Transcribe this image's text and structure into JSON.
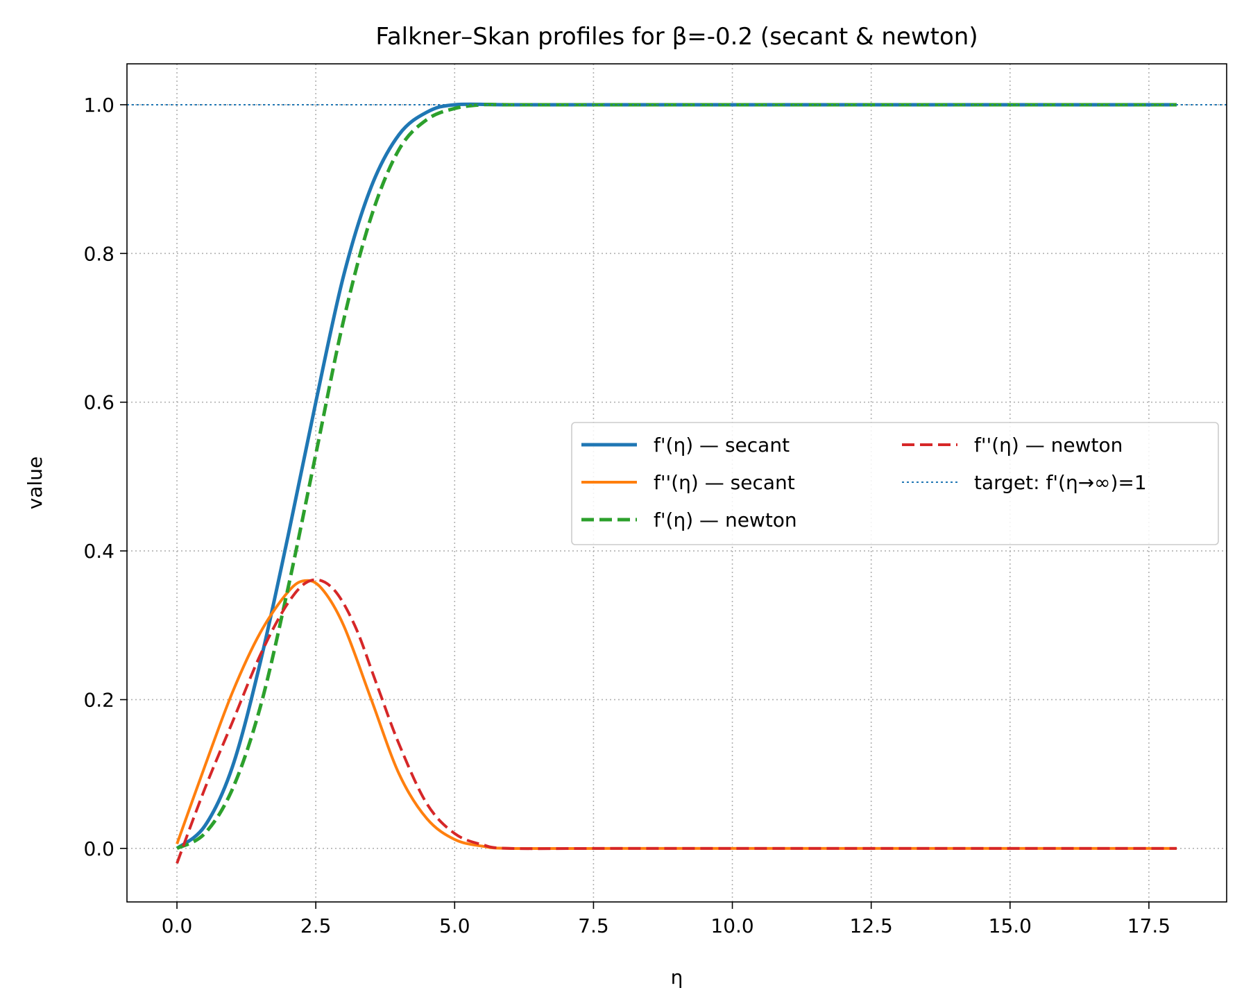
{
  "chart_data": {
    "type": "line",
    "title": "Falkner–Skan profiles for β=-0.2 (secant & newton)",
    "xlabel": "η",
    "ylabel": "value",
    "xlim": [
      -0.9,
      18.9
    ],
    "ylim": [
      -0.072,
      1.055
    ],
    "x_ticks": [
      0.0,
      2.5,
      5.0,
      7.5,
      10.0,
      12.5,
      15.0,
      17.5
    ],
    "x_tick_labels": [
      "0.0",
      "2.5",
      "5.0",
      "7.5",
      "10.0",
      "12.5",
      "15.0",
      "17.5"
    ],
    "y_ticks": [
      0.0,
      0.2,
      0.4,
      0.6,
      0.8,
      1.0
    ],
    "y_tick_labels": [
      "0.0",
      "0.2",
      "0.4",
      "0.6",
      "0.8",
      "1.0"
    ],
    "grid": true,
    "legend_position": "center-right",
    "series": [
      {
        "name": "f'(η) — secant",
        "color": "#1f77b4",
        "style": "solid",
        "x": [
          0.0,
          0.5,
          1.0,
          1.5,
          2.0,
          2.5,
          3.0,
          3.5,
          4.0,
          4.5,
          5.0,
          6.0,
          8.0,
          12.0,
          18.0
        ],
        "y": [
          0.0,
          0.03,
          0.11,
          0.25,
          0.42,
          0.6,
          0.77,
          0.89,
          0.96,
          0.99,
          1.0,
          1.0,
          1.0,
          1.0,
          1.0
        ]
      },
      {
        "name": "f''(η) — secant",
        "color": "#ff7f0e",
        "style": "solid",
        "x": [
          0.0,
          0.5,
          1.0,
          1.5,
          2.0,
          2.3,
          2.6,
          3.0,
          3.5,
          4.0,
          4.5,
          5.0,
          5.5,
          6.0,
          8.0,
          12.0,
          18.0
        ],
        "y": [
          0.006,
          0.11,
          0.21,
          0.29,
          0.345,
          0.36,
          0.35,
          0.3,
          0.2,
          0.1,
          0.04,
          0.012,
          0.003,
          0.0,
          0.0,
          0.0,
          0.0
        ],
        "markers": "none"
      },
      {
        "name": "f'(η) — newton",
        "color": "#2ca02c",
        "style": "dashed",
        "x": [
          0.0,
          0.5,
          1.0,
          1.5,
          2.0,
          2.5,
          3.0,
          3.5,
          4.0,
          4.5,
          5.0,
          5.5,
          6.0,
          8.0,
          12.0,
          18.0
        ],
        "y": [
          0.0,
          0.02,
          0.08,
          0.19,
          0.35,
          0.53,
          0.71,
          0.85,
          0.94,
          0.98,
          0.995,
          1.0,
          1.0,
          1.0,
          1.0,
          1.0
        ]
      },
      {
        "name": "f''(η) — newton",
        "color": "#d62728",
        "style": "dashed",
        "x": [
          0.0,
          0.5,
          1.0,
          1.5,
          2.0,
          2.4,
          2.8,
          3.2,
          3.6,
          4.0,
          4.5,
          5.0,
          5.5,
          6.0,
          8.0,
          12.0,
          18.0
        ],
        "y": [
          -0.02,
          0.08,
          0.17,
          0.26,
          0.33,
          0.36,
          0.35,
          0.3,
          0.22,
          0.14,
          0.06,
          0.02,
          0.005,
          0.0,
          0.0,
          0.0,
          0.0
        ]
      },
      {
        "name": "target: f'(η→∞)=1",
        "color": "#1f77b4",
        "style": "dotted",
        "x": [
          -0.9,
          18.9
        ],
        "y": [
          1.0,
          1.0
        ]
      }
    ]
  }
}
